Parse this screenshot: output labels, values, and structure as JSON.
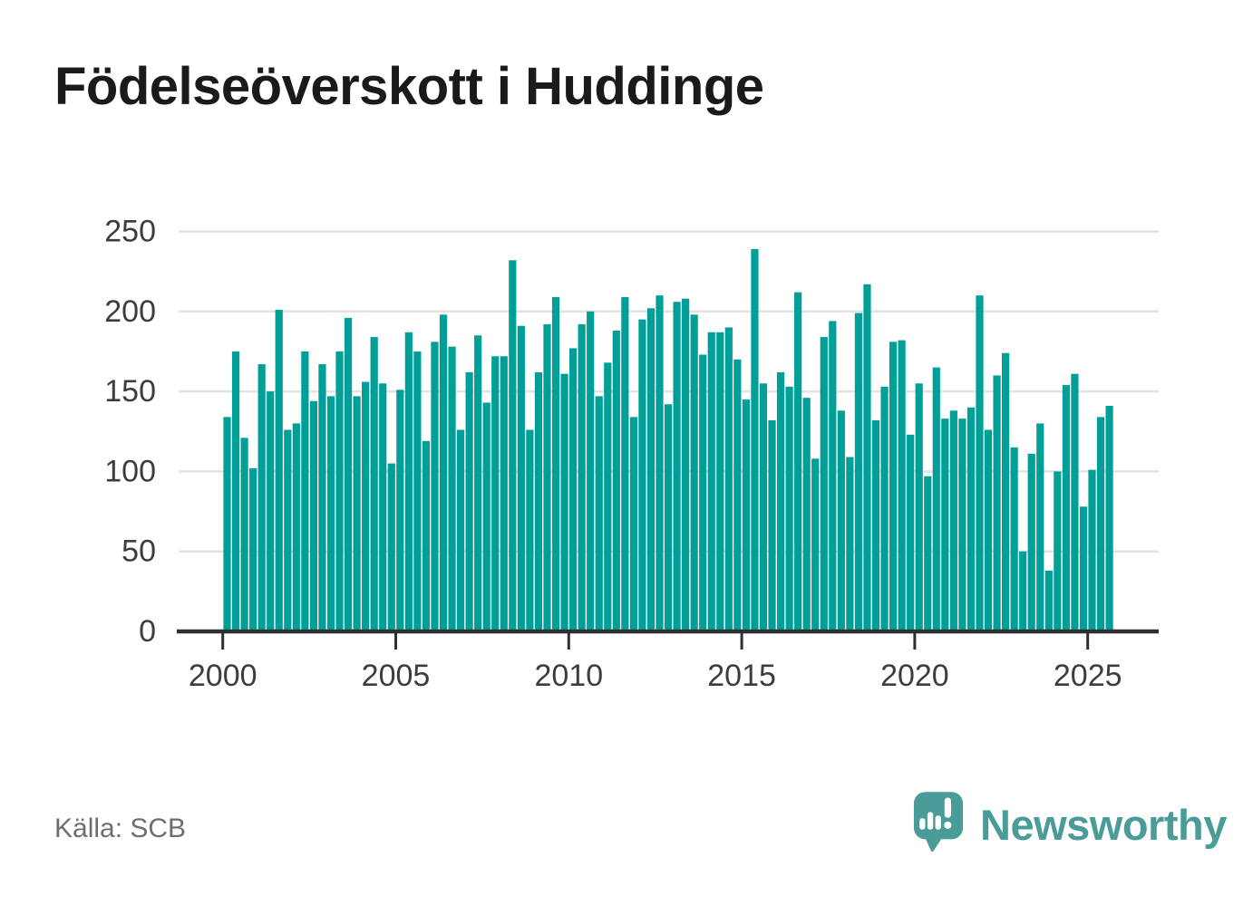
{
  "title": "Födelseöverskott i Huddinge",
  "source": "Källa: SCB",
  "brand": {
    "name": "Newsworthy"
  },
  "colors": {
    "bar": "#00a099",
    "title_text": "#1a1a1a",
    "axis_label": "#3d3d3d",
    "gridline": "#e2e2e2",
    "axis_line": "#2f2f2f",
    "source_text": "#6e6e6e",
    "logo_teal": "#4a9c98",
    "background": "#ffffff"
  },
  "chart_data": {
    "type": "bar",
    "title": "Födelseöverskott i Huddinge",
    "frequency": "quarterly",
    "x_start": {
      "year": 2000,
      "quarter": 1
    },
    "x_end": {
      "year": 2025,
      "quarter": 3
    },
    "x_tick_years": [
      2000,
      2005,
      2010,
      2015,
      2020,
      2025
    ],
    "y_ticks": [
      0,
      50,
      100,
      150,
      200,
      250
    ],
    "ylim": [
      0,
      250
    ],
    "grid": true,
    "legend": false,
    "series": [
      {
        "name": "Födelseöverskott",
        "values": [
          134,
          175,
          121,
          102,
          167,
          150,
          201,
          126,
          130,
          175,
          144,
          167,
          147,
          175,
          196,
          147,
          156,
          184,
          155,
          105,
          151,
          187,
          175,
          119,
          181,
          198,
          178,
          126,
          162,
          185,
          143,
          172,
          172,
          232,
          191,
          126,
          162,
          192,
          209,
          161,
          177,
          192,
          200,
          147,
          168,
          188,
          209,
          134,
          195,
          202,
          210,
          142,
          206,
          208,
          198,
          173,
          187,
          187,
          190,
          170,
          145,
          239,
          155,
          132,
          162,
          153,
          212,
          146,
          108,
          184,
          194,
          138,
          109,
          199,
          217,
          132,
          153,
          181,
          182,
          123,
          155,
          97,
          165,
          133,
          138,
          133,
          140,
          210,
          126,
          160,
          174,
          115,
          50,
          111,
          130,
          38,
          100,
          154,
          161,
          78,
          101,
          134,
          141
        ]
      }
    ]
  }
}
